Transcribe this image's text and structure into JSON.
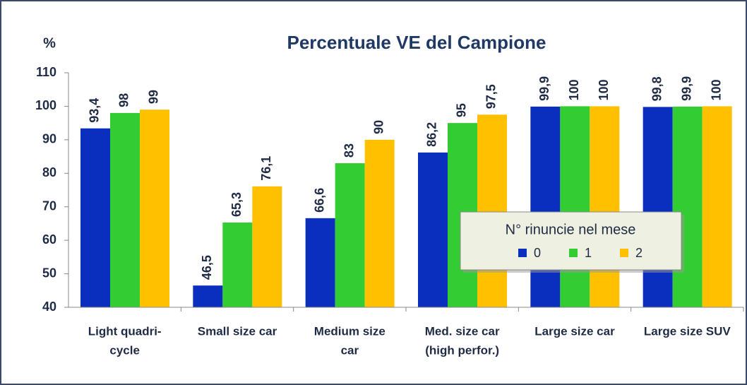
{
  "chart_data": {
    "type": "bar",
    "title": "Percentuale VE del Campione",
    "y_label": "%",
    "categories": [
      [
        "Light quadri-",
        "cycle"
      ],
      [
        "Small size car"
      ],
      [
        "Medium size",
        "car"
      ],
      [
        "Med. size car",
        "(high perfor.)"
      ],
      [
        "Large size car"
      ],
      [
        "Large size SUV"
      ]
    ],
    "series": [
      {
        "name": "0",
        "color": "#0a2fbf",
        "values": [
          93.4,
          46.5,
          66.6,
          86.2,
          99.9,
          99.8
        ],
        "value_labels": [
          "93,4",
          "46,5",
          "66,6",
          "86,2",
          "99,9",
          "99,8"
        ]
      },
      {
        "name": "1",
        "color": "#33cc33",
        "values": [
          98,
          65.3,
          83,
          95,
          100,
          99.9
        ],
        "value_labels": [
          "98",
          "65,3",
          "83",
          "95",
          "100",
          "99,9"
        ]
      },
      {
        "name": "2",
        "color": "#ffc000",
        "values": [
          99,
          76.1,
          90,
          97.5,
          100,
          100
        ],
        "value_labels": [
          "99",
          "76,1",
          "90",
          "97,5",
          "100",
          "100"
        ]
      }
    ],
    "legend_title": "N° rinuncie nel mese",
    "ylim": [
      40,
      110
    ],
    "yticks": [
      40,
      50,
      60,
      70,
      80,
      90,
      100,
      110
    ],
    "grid": false
  }
}
